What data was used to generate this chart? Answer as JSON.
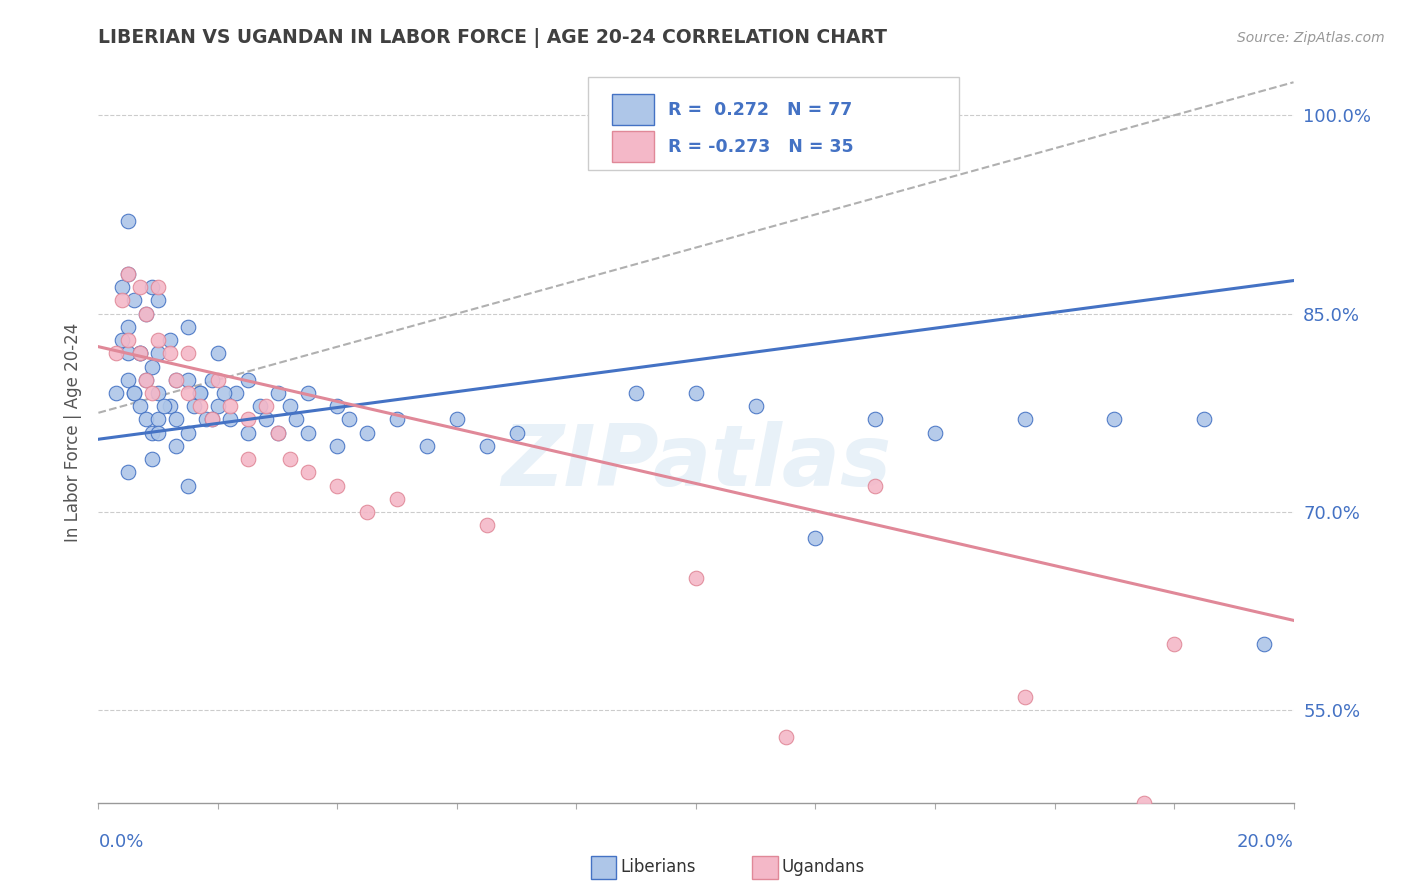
{
  "title": "LIBERIAN VS UGANDAN IN LABOR FORCE | AGE 20-24 CORRELATION CHART",
  "source_text": "Source: ZipAtlas.com",
  "ytick_labels": [
    "55.0%",
    "70.0%",
    "85.0%",
    "100.0%"
  ],
  "ytick_values": [
    0.55,
    0.7,
    0.85,
    1.0
  ],
  "xlim": [
    0.0,
    0.2
  ],
  "ylim": [
    0.48,
    1.04
  ],
  "legend_blue_R": 0.272,
  "legend_blue_N": 77,
  "legend_pink_R": -0.273,
  "legend_pink_N": 35,
  "blue_fill": "#aec6e8",
  "pink_fill": "#f4b8c8",
  "blue_edge": "#4472C4",
  "pink_edge": "#e08898",
  "blue_line": "#4472C4",
  "pink_line": "#e08898",
  "gray_line": "#b0b0b0",
  "title_color": "#404040",
  "axis_label_color": "#4472C4",
  "ylabel": "In Labor Force | Age 20-24",
  "watermark": "ZIPatlas",
  "blue_scatter_x": [
    0.003,
    0.004,
    0.004,
    0.005,
    0.005,
    0.005,
    0.005,
    0.006,
    0.006,
    0.007,
    0.007,
    0.008,
    0.008,
    0.009,
    0.009,
    0.009,
    0.01,
    0.01,
    0.01,
    0.01,
    0.012,
    0.012,
    0.013,
    0.013,
    0.015,
    0.015,
    0.015,
    0.016,
    0.017,
    0.018,
    0.019,
    0.02,
    0.02,
    0.022,
    0.023,
    0.025,
    0.025,
    0.027,
    0.028,
    0.03,
    0.03,
    0.032,
    0.033,
    0.035,
    0.035,
    0.04,
    0.04,
    0.042,
    0.045,
    0.05,
    0.055,
    0.06,
    0.065,
    0.07,
    0.09,
    0.1,
    0.11,
    0.12,
    0.13,
    0.14,
    0.155,
    0.17,
    0.185,
    0.195,
    0.005,
    0.005,
    0.006,
    0.007,
    0.008,
    0.009,
    0.01,
    0.011,
    0.013,
    0.015,
    0.017,
    0.019,
    0.021
  ],
  "blue_scatter_y": [
    0.79,
    0.83,
    0.87,
    0.8,
    0.84,
    0.88,
    0.92,
    0.79,
    0.86,
    0.78,
    0.82,
    0.77,
    0.85,
    0.76,
    0.81,
    0.87,
    0.77,
    0.82,
    0.86,
    0.79,
    0.78,
    0.83,
    0.77,
    0.8,
    0.76,
    0.8,
    0.84,
    0.78,
    0.79,
    0.77,
    0.8,
    0.78,
    0.82,
    0.77,
    0.79,
    0.76,
    0.8,
    0.78,
    0.77,
    0.76,
    0.79,
    0.78,
    0.77,
    0.76,
    0.79,
    0.78,
    0.75,
    0.77,
    0.76,
    0.77,
    0.75,
    0.77,
    0.75,
    0.76,
    0.79,
    0.79,
    0.78,
    0.68,
    0.77,
    0.76,
    0.77,
    0.77,
    0.77,
    0.6,
    0.73,
    0.82,
    0.79,
    0.82,
    0.8,
    0.74,
    0.76,
    0.78,
    0.75,
    0.72,
    0.79,
    0.77,
    0.79
  ],
  "pink_scatter_x": [
    0.003,
    0.004,
    0.005,
    0.005,
    0.007,
    0.007,
    0.008,
    0.008,
    0.009,
    0.01,
    0.01,
    0.012,
    0.013,
    0.015,
    0.015,
    0.017,
    0.019,
    0.02,
    0.022,
    0.025,
    0.025,
    0.028,
    0.03,
    0.032,
    0.035,
    0.04,
    0.045,
    0.05,
    0.065,
    0.1,
    0.115,
    0.13,
    0.155,
    0.175,
    0.18
  ],
  "pink_scatter_y": [
    0.82,
    0.86,
    0.83,
    0.88,
    0.82,
    0.87,
    0.8,
    0.85,
    0.79,
    0.83,
    0.87,
    0.82,
    0.8,
    0.82,
    0.79,
    0.78,
    0.77,
    0.8,
    0.78,
    0.77,
    0.74,
    0.78,
    0.76,
    0.74,
    0.73,
    0.72,
    0.7,
    0.71,
    0.69,
    0.65,
    0.53,
    0.72,
    0.56,
    0.48,
    0.6
  ],
  "blue_line_x": [
    0.0,
    0.2
  ],
  "blue_line_y": [
    0.755,
    0.875
  ],
  "pink_line_x": [
    0.0,
    0.2
  ],
  "pink_line_y": [
    0.825,
    0.618
  ],
  "gray_line_x": [
    0.0,
    0.2
  ],
  "gray_line_y": [
    0.775,
    1.025
  ]
}
